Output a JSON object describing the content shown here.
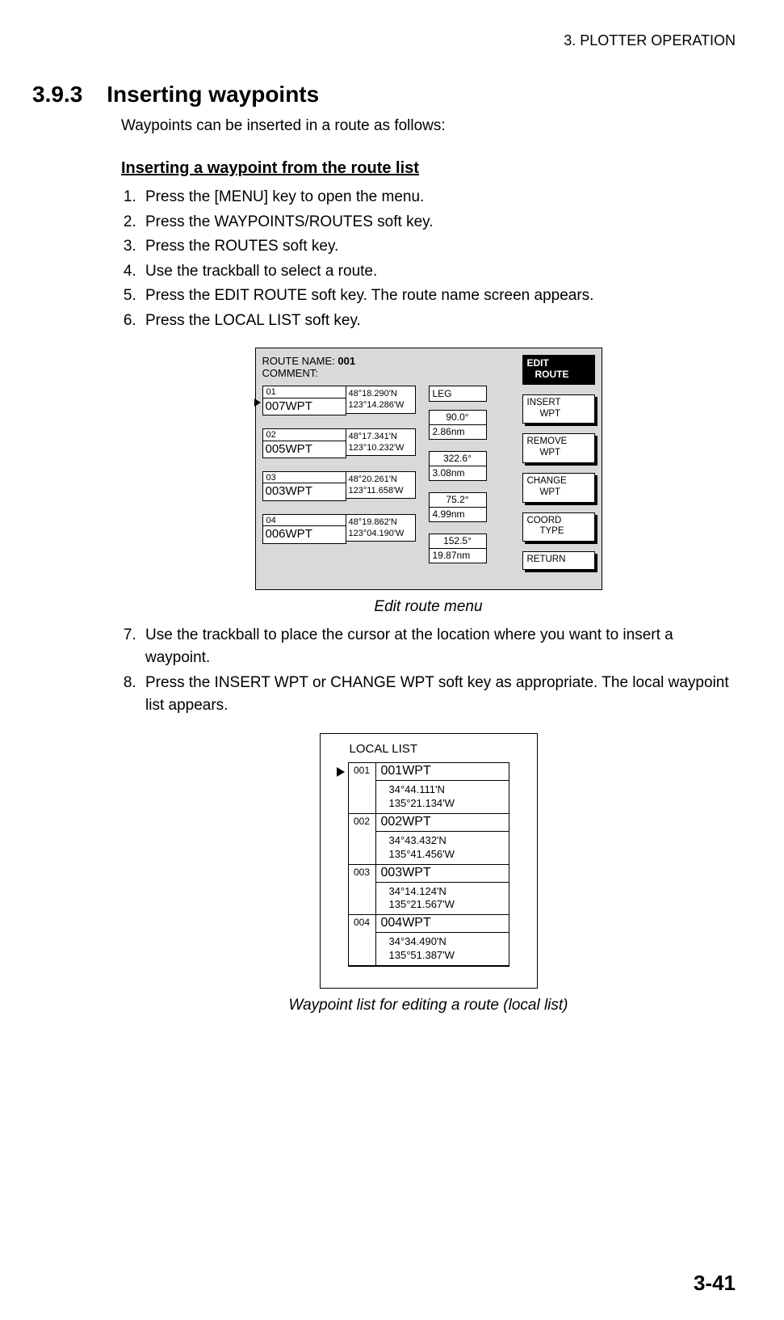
{
  "header": {
    "running": "3. PLOTTER OPERATION"
  },
  "section": {
    "number": "3.9.3",
    "title": "Inserting waypoints"
  },
  "intro": "Waypoints can be inserted in a route as follows:",
  "subhead1": "Inserting a waypoint from the route list",
  "steps_a": [
    "Press the [MENU] key to open the menu.",
    "Press the WAYPOINTS/ROUTES soft key.",
    "Press the ROUTES soft key.",
    "Use the trackball to select a route.",
    "Press the EDIT ROUTE soft key. The route name screen appears.",
    "Press the LOCAL LIST soft key."
  ],
  "fig1": {
    "route_name_label": "ROUTE NAME:",
    "route_name_value": "001",
    "comment_label": "COMMENT:",
    "leg_header": "LEG",
    "waypoints": [
      {
        "num": "01",
        "name": "007WPT",
        "lat": "48°18.290'N",
        "lon": "123°14.286'W"
      },
      {
        "num": "02",
        "name": "005WPT",
        "lat": "48°17.341'N",
        "lon": "123°10.232'W"
      },
      {
        "num": "03",
        "name": "003WPT",
        "lat": "48°20.261'N",
        "lon": "123°11.658'W"
      },
      {
        "num": "04",
        "name": "006WPT",
        "lat": "48°19.862'N",
        "lon": "123°04.190'W"
      }
    ],
    "legs": [
      {
        "brg": "90.0°",
        "dist": "2.86nm"
      },
      {
        "brg": "322.6°",
        "dist": "3.08nm"
      },
      {
        "brg": "75.2°",
        "dist": "4.99nm"
      },
      {
        "brg": "152.5°",
        "dist": "19.87nm"
      }
    ],
    "softkey_title1": "EDIT",
    "softkey_title2": "ROUTE",
    "softkeys": [
      {
        "l1": "INSERT",
        "l2": "WPT"
      },
      {
        "l1": "REMOVE",
        "l2": "WPT"
      },
      {
        "l1": "CHANGE",
        "l2": "WPT"
      },
      {
        "l1": "COORD",
        "l2": "TYPE"
      },
      {
        "l1": "RETURN",
        "l2": ""
      }
    ],
    "caption": "Edit route menu"
  },
  "steps_b": [
    "Use the trackball to place the cursor at the location where you want to insert a waypoint.",
    "Press the INSERT WPT or CHANGE WPT soft key as appropriate. The local waypoint list appears."
  ],
  "fig2": {
    "title": "LOCAL LIST",
    "rows": [
      {
        "num": "001",
        "name": "001WPT",
        "lat": "34°44.111'N",
        "lon": "135°21.134'W"
      },
      {
        "num": "002",
        "name": "002WPT",
        "lat": "34°43.432'N",
        "lon": "135°41.456'W"
      },
      {
        "num": "003",
        "name": "003WPT",
        "lat": "34°14.124'N",
        "lon": "135°21.567'W"
      },
      {
        "num": "004",
        "name": "004WPT",
        "lat": "34°34.490'N",
        "lon": "135°51.387'W"
      }
    ],
    "caption": "Waypoint list for editing a route (local list)"
  },
  "page_number": "3-41"
}
